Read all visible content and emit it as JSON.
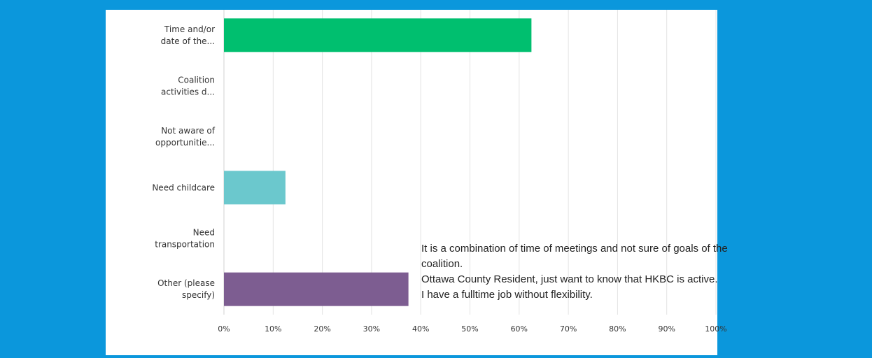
{
  "colors": {
    "background": "#0b97dc",
    "panel": "#ffffff",
    "grid": "#e3e3e3"
  },
  "chart_data": {
    "type": "bar",
    "orientation": "horizontal",
    "categories": [
      [
        "Time and/or",
        "date of the..."
      ],
      [
        "Coalition",
        "activities d..."
      ],
      [
        "Not aware of",
        "opportunitie..."
      ],
      [
        "Need childcare"
      ],
      [
        "Need",
        "transportation"
      ],
      [
        "Other (please",
        "specify)"
      ]
    ],
    "values": [
      62.5,
      0,
      0,
      12.5,
      0,
      37.5
    ],
    "bar_colors": [
      "#00bf6f",
      "#7ed3a9",
      "#a8d97f",
      "#6bc8cd",
      "#f4b35c",
      "#7d5d91"
    ],
    "x_ticks": [
      "0%",
      "10%",
      "20%",
      "30%",
      "40%",
      "50%",
      "60%",
      "70%",
      "80%",
      "90%",
      "100%"
    ],
    "xlim": [
      0,
      100
    ],
    "grid": true,
    "legend": "none"
  },
  "annotation": {
    "lines": [
      "It is a combination of time of meetings and not sure of goals of the",
      "coalition.",
      "Ottawa County Resident, just want to know that HKBC is active.",
      "I have a fulltime job without flexibility."
    ]
  }
}
